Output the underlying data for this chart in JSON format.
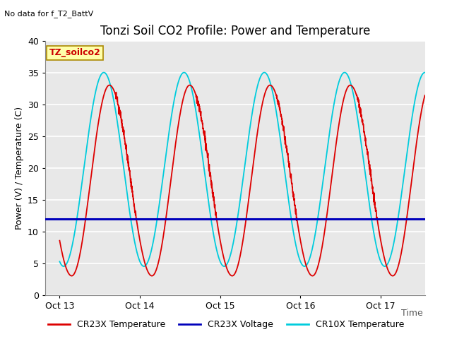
{
  "title": "Tonzi Soil CO2 Profile: Power and Temperature",
  "top_left_note": "No data for f_T2_BattV",
  "ylabel": "Power (V) / Temperature (C)",
  "xlabel_label": "Time",
  "ylim": [
    0,
    40
  ],
  "xlim_start": -0.18,
  "xlim_end": 4.55,
  "yticks": [
    0,
    5,
    10,
    15,
    20,
    25,
    30,
    35,
    40
  ],
  "xtick_labels": [
    "Oct 13",
    "Oct 14",
    "Oct 15",
    "Oct 16",
    "Oct 17"
  ],
  "xtick_positions": [
    0,
    1,
    2,
    3,
    4
  ],
  "legend_box_label": "TZ_soilco2",
  "legend_box_facecolor": "#ffffaa",
  "legend_box_edgecolor": "#aa8800",
  "plot_bg_color": "#e8e8e8",
  "grid_color": "#ffffff",
  "voltage_line_y": 12.0,
  "cr23x_color": "#dd0000",
  "cr10x_color": "#00ccdd",
  "voltage_color": "#0000bb",
  "legend_items": [
    "CR23X Temperature",
    "CR23X Voltage",
    "CR10X Temperature"
  ],
  "title_fontsize": 12,
  "note_fontsize": 8,
  "axis_label_fontsize": 9,
  "tick_fontsize": 9,
  "legend_fontsize": 9
}
